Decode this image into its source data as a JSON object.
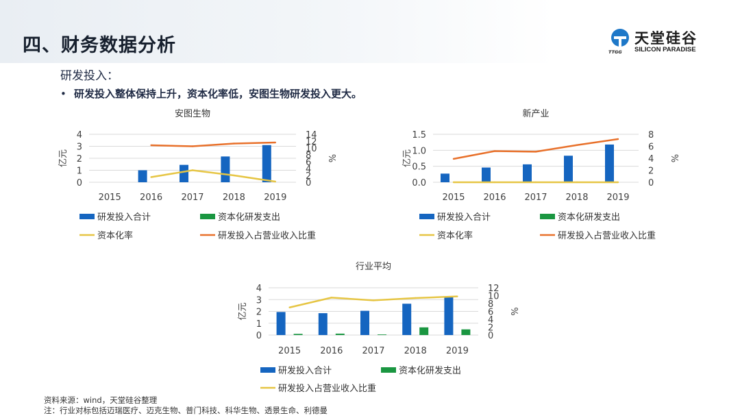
{
  "page": {
    "title": "四、财务数据分析",
    "section_heading": "研发投入：",
    "bullet": "研发投入整体保持上升，资本化率低，安图生物研发投入更大。",
    "bullet_marker": "•",
    "source_note": "资料来源：wind，天堂硅谷整理",
    "note": "注：行业对标包括迈瑞医疗、迈克生物、普门科技、科华生物、透景生命、利德曼"
  },
  "logo": {
    "name_cn": "天堂硅谷",
    "name_en": "SILICON PARADISE",
    "mark_text": "TTGG",
    "icon": "ttgg-logo-icon",
    "color": "#1e78c8"
  },
  "colors": {
    "bar_total": "#1565c0",
    "bar_cap": "#1a9641",
    "line_rate": "#e6c543",
    "line_ratio": "#e8702a"
  },
  "chart_data": [
    {
      "type": "bar",
      "title": "安图生物",
      "categories": [
        "2015",
        "2016",
        "2017",
        "2018",
        "2019"
      ],
      "ylabel": "亿元",
      "y2label": "%",
      "ylim": [
        0,
        4
      ],
      "yticks": [
        0,
        1,
        2,
        3,
        4
      ],
      "y2lim": [
        0,
        14
      ],
      "y2ticks": [
        0,
        2,
        4,
        6,
        8,
        10,
        12,
        14
      ],
      "series": [
        {
          "name": "研发投入合计",
          "kind": "bar",
          "axis": "left",
          "color": "#1565c0",
          "values": [
            null,
            1.0,
            1.45,
            2.15,
            3.1
          ]
        },
        {
          "name": "资本化研发支出",
          "kind": "bar",
          "axis": "left",
          "color": "#1a9641",
          "values": [
            null,
            0,
            0,
            0,
            0
          ]
        },
        {
          "name": "资本化率",
          "kind": "line",
          "axis": "right",
          "color": "#e6c543",
          "values": [
            null,
            1.5,
            3.5,
            2.0,
            0.2
          ]
        },
        {
          "name": "研发投入占营业收入比重",
          "kind": "line",
          "axis": "right",
          "color": "#e8702a",
          "values": [
            null,
            10.8,
            10.5,
            11.3,
            11.6
          ]
        }
      ],
      "legend_position": "bottom",
      "grid": true
    },
    {
      "type": "bar",
      "title": "新产业",
      "categories": [
        "2015",
        "2016",
        "2017",
        "2018",
        "2019"
      ],
      "ylabel": "亿元",
      "y2label": "%",
      "ylim": [
        0,
        1.5
      ],
      "yticks": [
        "0.0",
        "0.5",
        "1.0",
        "1.5"
      ],
      "y2lim": [
        0,
        8
      ],
      "y2ticks": [
        0,
        2,
        4,
        6,
        8
      ],
      "series": [
        {
          "name": "研发投入合计",
          "kind": "bar",
          "axis": "left",
          "color": "#1565c0",
          "values": [
            0.27,
            0.46,
            0.56,
            0.83,
            1.18
          ]
        },
        {
          "name": "资本化研发支出",
          "kind": "bar",
          "axis": "left",
          "color": "#1a9641",
          "values": [
            0,
            0,
            0,
            0,
            0
          ]
        },
        {
          "name": "资本化率",
          "kind": "line",
          "axis": "right",
          "color": "#e6c543",
          "values": [
            0,
            0,
            0,
            0,
            0
          ]
        },
        {
          "name": "研发投入占营业收入比重",
          "kind": "line",
          "axis": "right",
          "color": "#e8702a",
          "values": [
            3.9,
            5.2,
            5.1,
            6.2,
            7.2
          ]
        }
      ],
      "legend_position": "bottom",
      "grid": true
    },
    {
      "type": "bar",
      "title": "行业平均",
      "categories": [
        "2015",
        "2016",
        "2017",
        "2018",
        "2019"
      ],
      "ylabel": "亿元",
      "y2label": "%",
      "ylim": [
        0,
        4
      ],
      "yticks": [
        0,
        1,
        2,
        3,
        4
      ],
      "y2lim": [
        0,
        12
      ],
      "y2ticks": [
        0,
        2,
        4,
        6,
        8,
        10,
        12
      ],
      "series": [
        {
          "name": "研发投入合计",
          "kind": "bar",
          "axis": "left",
          "color": "#1565c0",
          "values": [
            1.95,
            1.85,
            2.05,
            2.65,
            3.25
          ]
        },
        {
          "name": "资本化研发支出",
          "kind": "bar",
          "axis": "left",
          "color": "#1a9641",
          "values": [
            0.1,
            0.12,
            0.05,
            0.65,
            0.48
          ]
        },
        {
          "name": "研发投入占营业收入比重",
          "kind": "line",
          "axis": "right",
          "color": "#e6c543",
          "values": [
            7.0,
            9.5,
            8.8,
            9.4,
            9.8
          ]
        }
      ],
      "legend_position": "bottom",
      "grid": true
    }
  ]
}
